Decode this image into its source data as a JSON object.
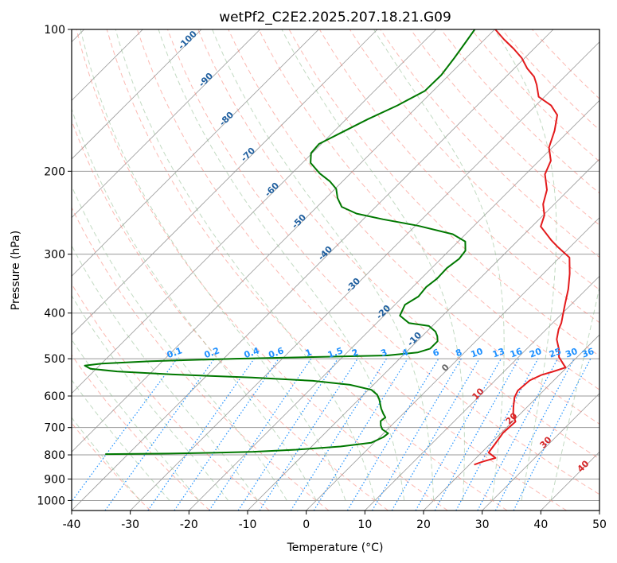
{
  "chart_data": {
    "type": "line",
    "title": "wetPf2_C2E2.2025.207.18.21.G09",
    "xlabel": "Temperature (°C)",
    "ylabel": "Pressure (hPa)",
    "xlim": [
      -40,
      50
    ],
    "ylim": [
      1050,
      100
    ],
    "y_scale": "log",
    "x_ticks": [
      -40,
      -30,
      -20,
      -10,
      0,
      10,
      20,
      30,
      40,
      50
    ],
    "y_ticks": [
      100,
      200,
      300,
      400,
      500,
      600,
      700,
      800,
      900,
      1000
    ],
    "grid": true,
    "skew_t": true,
    "series": [
      {
        "role": "temperature",
        "color": "#e31a1c",
        "points": [
          [
            20.8,
            839
          ],
          [
            21.8,
            826
          ],
          [
            23.3,
            812
          ],
          [
            21.2,
            791
          ],
          [
            20.8,
            756
          ],
          [
            20.3,
            718
          ],
          [
            20.5,
            680
          ],
          [
            18.8,
            655
          ],
          [
            17.5,
            630
          ],
          [
            16.2,
            604
          ],
          [
            15.6,
            584
          ],
          [
            15.9,
            556
          ],
          [
            17.0,
            541
          ],
          [
            18.3,
            533
          ],
          [
            19.8,
            522
          ],
          [
            18.7,
            512
          ],
          [
            16.9,
            496
          ],
          [
            15.6,
            478
          ],
          [
            13.5,
            455
          ],
          [
            12.1,
            433
          ],
          [
            11.5,
            420
          ],
          [
            10.4,
            404
          ],
          [
            8.9,
            383
          ],
          [
            6.9,
            356
          ],
          [
            4.5,
            330
          ],
          [
            1.7,
            305
          ],
          [
            -2.0,
            290
          ],
          [
            -4.4,
            280
          ],
          [
            -8.5,
            262
          ],
          [
            -9.8,
            248
          ],
          [
            -11.9,
            235
          ],
          [
            -13.7,
            219
          ],
          [
            -16.7,
            203
          ],
          [
            -18.0,
            190
          ],
          [
            -20.6,
            178
          ],
          [
            -22.5,
            164
          ],
          [
            -24.7,
            152
          ],
          [
            -27.4,
            145
          ],
          [
            -31.0,
            139
          ],
          [
            -33.4,
            131
          ],
          [
            -35.2,
            126
          ],
          [
            -37.8,
            121
          ],
          [
            -40.5,
            115
          ],
          [
            -43.4,
            110
          ],
          [
            -46.7,
            105
          ],
          [
            -49.9,
            100
          ]
        ]
      },
      {
        "role": "dewpoint",
        "color": "#007800",
        "points": [
          [
            -43.9,
            797
          ],
          [
            -33.2,
            795
          ],
          [
            -25.6,
            792
          ],
          [
            -19.0,
            788
          ],
          [
            -12.1,
            780
          ],
          [
            -5.1,
            768
          ],
          [
            -0.5,
            754
          ],
          [
            0.6,
            734
          ],
          [
            0.8,
            720
          ],
          [
            -0.9,
            706
          ],
          [
            -1.8,
            693
          ],
          [
            -2.6,
            678
          ],
          [
            -2.4,
            666
          ],
          [
            -3.4,
            654
          ],
          [
            -4.7,
            637
          ],
          [
            -6.5,
            610
          ],
          [
            -7.7,
            596
          ],
          [
            -9.5,
            582
          ],
          [
            -14.0,
            568
          ],
          [
            -21.0,
            557
          ],
          [
            -32.0,
            548
          ],
          [
            -46.0,
            540
          ],
          [
            -56.0,
            532
          ],
          [
            -61.0,
            525
          ],
          [
            -62.5,
            517
          ],
          [
            -60.0,
            512
          ],
          [
            -52.0,
            506
          ],
          [
            -38.0,
            500
          ],
          [
            -25.0,
            496
          ],
          [
            -12.7,
            492
          ],
          [
            -8.0,
            485
          ],
          [
            -6.5,
            476
          ],
          [
            -6.5,
            459
          ],
          [
            -7.4,
            448
          ],
          [
            -8.5,
            438
          ],
          [
            -10.6,
            426
          ],
          [
            -14.5,
            420
          ],
          [
            -17.3,
            405
          ],
          [
            -18.3,
            384
          ],
          [
            -17.4,
            369
          ],
          [
            -17.7,
            352
          ],
          [
            -17.3,
            338
          ],
          [
            -17.4,
            321
          ],
          [
            -16.9,
            307
          ],
          [
            -17.2,
            295
          ],
          [
            -18.8,
            282
          ],
          [
            -22.2,
            272
          ],
          [
            -29.6,
            261
          ],
          [
            -36.6,
            253
          ],
          [
            -42.1,
            246
          ],
          [
            -45.8,
            238
          ],
          [
            -48.0,
            228
          ],
          [
            -49.8,
            218
          ],
          [
            -52.2,
            210
          ],
          [
            -55.3,
            202
          ],
          [
            -58.6,
            192
          ],
          [
            -60.2,
            183
          ],
          [
            -60.4,
            175
          ],
          [
            -58.4,
            165
          ],
          [
            -56.3,
            155
          ],
          [
            -53.6,
            145
          ],
          [
            -51.4,
            135
          ],
          [
            -51.3,
            125
          ],
          [
            -52.0,
            115
          ],
          [
            -52.8,
            106
          ],
          [
            -53.4,
            100
          ]
        ]
      }
    ],
    "dry_adiabat_labels": [
      "-100",
      "-90",
      "-80",
      "-70",
      "-60",
      "-50",
      "-40",
      "-30",
      "-20",
      "-10",
      "0",
      "10",
      "20",
      "30",
      "40"
    ],
    "mixing_ratio_labels": [
      "0.1",
      "0.2",
      "0.4",
      "0.6",
      "1",
      "1.5",
      "2",
      "3",
      "4",
      "6",
      "8",
      "10",
      "13",
      "16",
      "20",
      "25",
      "30",
      "36"
    ],
    "colors": {
      "isotherm": "#999999",
      "isobar": "#999999",
      "dry_adiabat": "#fa8072",
      "moist_adiabat": "#8fbc8f",
      "mixing_ratio": "#1e90ff",
      "dry_label": "#1f5f9f",
      "moist_label": "#d62728",
      "mixing_label": "#1e90ff"
    }
  }
}
